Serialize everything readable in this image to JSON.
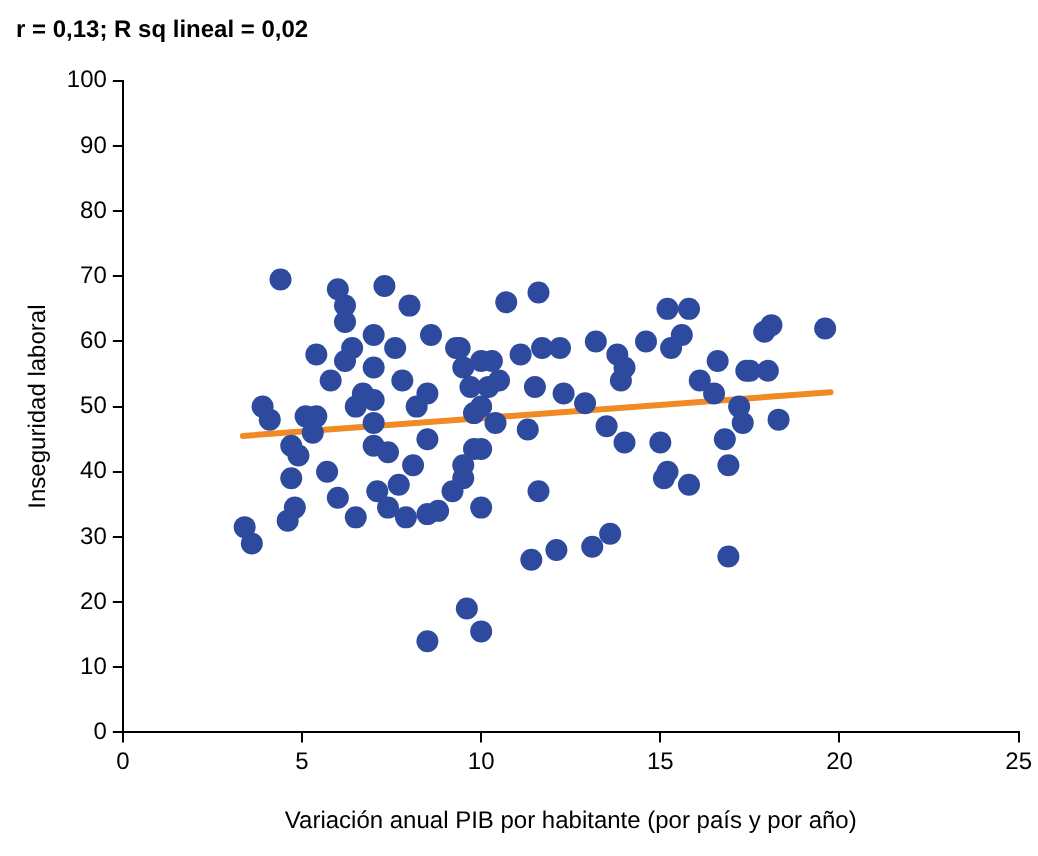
{
  "chart_data": {
    "type": "scatter",
    "title": "r = 0,13; R sq lineal = 0,02",
    "xlabel": "Variación anual PIB por habitante (por país y por año)",
    "ylabel": "Inseguridad laboral",
    "xlim": [
      0,
      25
    ],
    "xticks": [
      0,
      5,
      10,
      15,
      20,
      25
    ],
    "ylim": [
      0,
      100
    ],
    "yticks": [
      0,
      10,
      20,
      30,
      40,
      50,
      60,
      70,
      80,
      90,
      100
    ],
    "grid": false,
    "legend": false,
    "marker": "circle",
    "series": [
      {
        "color": "#2e4a9e",
        "x": [
          3.4,
          3.6,
          3.9,
          4.1,
          4.4,
          4.7,
          4.9,
          4.7,
          5.7,
          6,
          6.5,
          4.8,
          4.6,
          5.1,
          5.4,
          5.3,
          5.4,
          5.8,
          6,
          6.2,
          6.2,
          6.2,
          6.4,
          7,
          7.3,
          8,
          7,
          7.6,
          7.8,
          6.7,
          7,
          6.5,
          8.2,
          8.5,
          8.6,
          9.3,
          7,
          7,
          7.4,
          8.5,
          8.1,
          7.1,
          7.7,
          7.4,
          7.9,
          8.5,
          8.8,
          9.2,
          9.5,
          9.5,
          9.8,
          9.5,
          9.7,
          9.6,
          8.5,
          10,
          11.6,
          10.7,
          15.2,
          15.8,
          15.6,
          15.3,
          14.6,
          13.2,
          13.8,
          14,
          13.9,
          12.2,
          11.7,
          11.1,
          10.3,
          9.4,
          10.5,
          11.5,
          12.3,
          12.9,
          10.4,
          11.3,
          13.5,
          14,
          15,
          15.2,
          15.8,
          15.1,
          16.6,
          16.1,
          16.5,
          17.4,
          17.3,
          16.8,
          16.9,
          16.9,
          10,
          10,
          11.6,
          11.4,
          12.1,
          13.1,
          13.6,
          18.1,
          17.9,
          19.6,
          17.5,
          18,
          17.2,
          18.3,
          10,
          10.2,
          10,
          9.8
        ],
        "values": [
          31.5,
          29,
          50,
          48,
          69.5,
          44,
          42.5,
          39,
          40,
          36,
          33,
          34.5,
          32.5,
          48.5,
          48.5,
          46,
          58,
          54,
          68,
          65.5,
          63,
          57,
          59,
          61,
          68.5,
          65.5,
          56,
          59,
          54,
          52,
          51,
          50,
          50,
          52,
          61,
          59,
          47.5,
          44,
          43,
          45,
          41,
          37,
          38,
          34.5,
          33,
          33.5,
          34,
          37,
          41,
          39,
          43.5,
          56,
          53,
          19,
          14,
          15.5,
          67.5,
          66,
          65,
          65,
          61,
          59,
          60,
          60,
          58,
          56,
          54,
          59,
          59,
          58,
          57,
          59,
          54,
          53,
          52,
          50.5,
          47.5,
          46.5,
          47,
          44.5,
          44.5,
          40,
          38,
          39,
          57,
          54,
          52,
          55.5,
          47.5,
          45,
          41,
          27,
          34.5,
          43.5,
          37,
          26.5,
          28,
          28.5,
          30.5,
          62.5,
          61.5,
          62,
          55.5,
          55.5,
          50,
          48,
          57,
          53,
          50,
          49
        ]
      },
      {
        "type": "line",
        "color": "#f08a24",
        "marker": "none",
        "x": [
          3.35,
          19.75
        ],
        "values": [
          45.5,
          52.2
        ]
      }
    ]
  }
}
